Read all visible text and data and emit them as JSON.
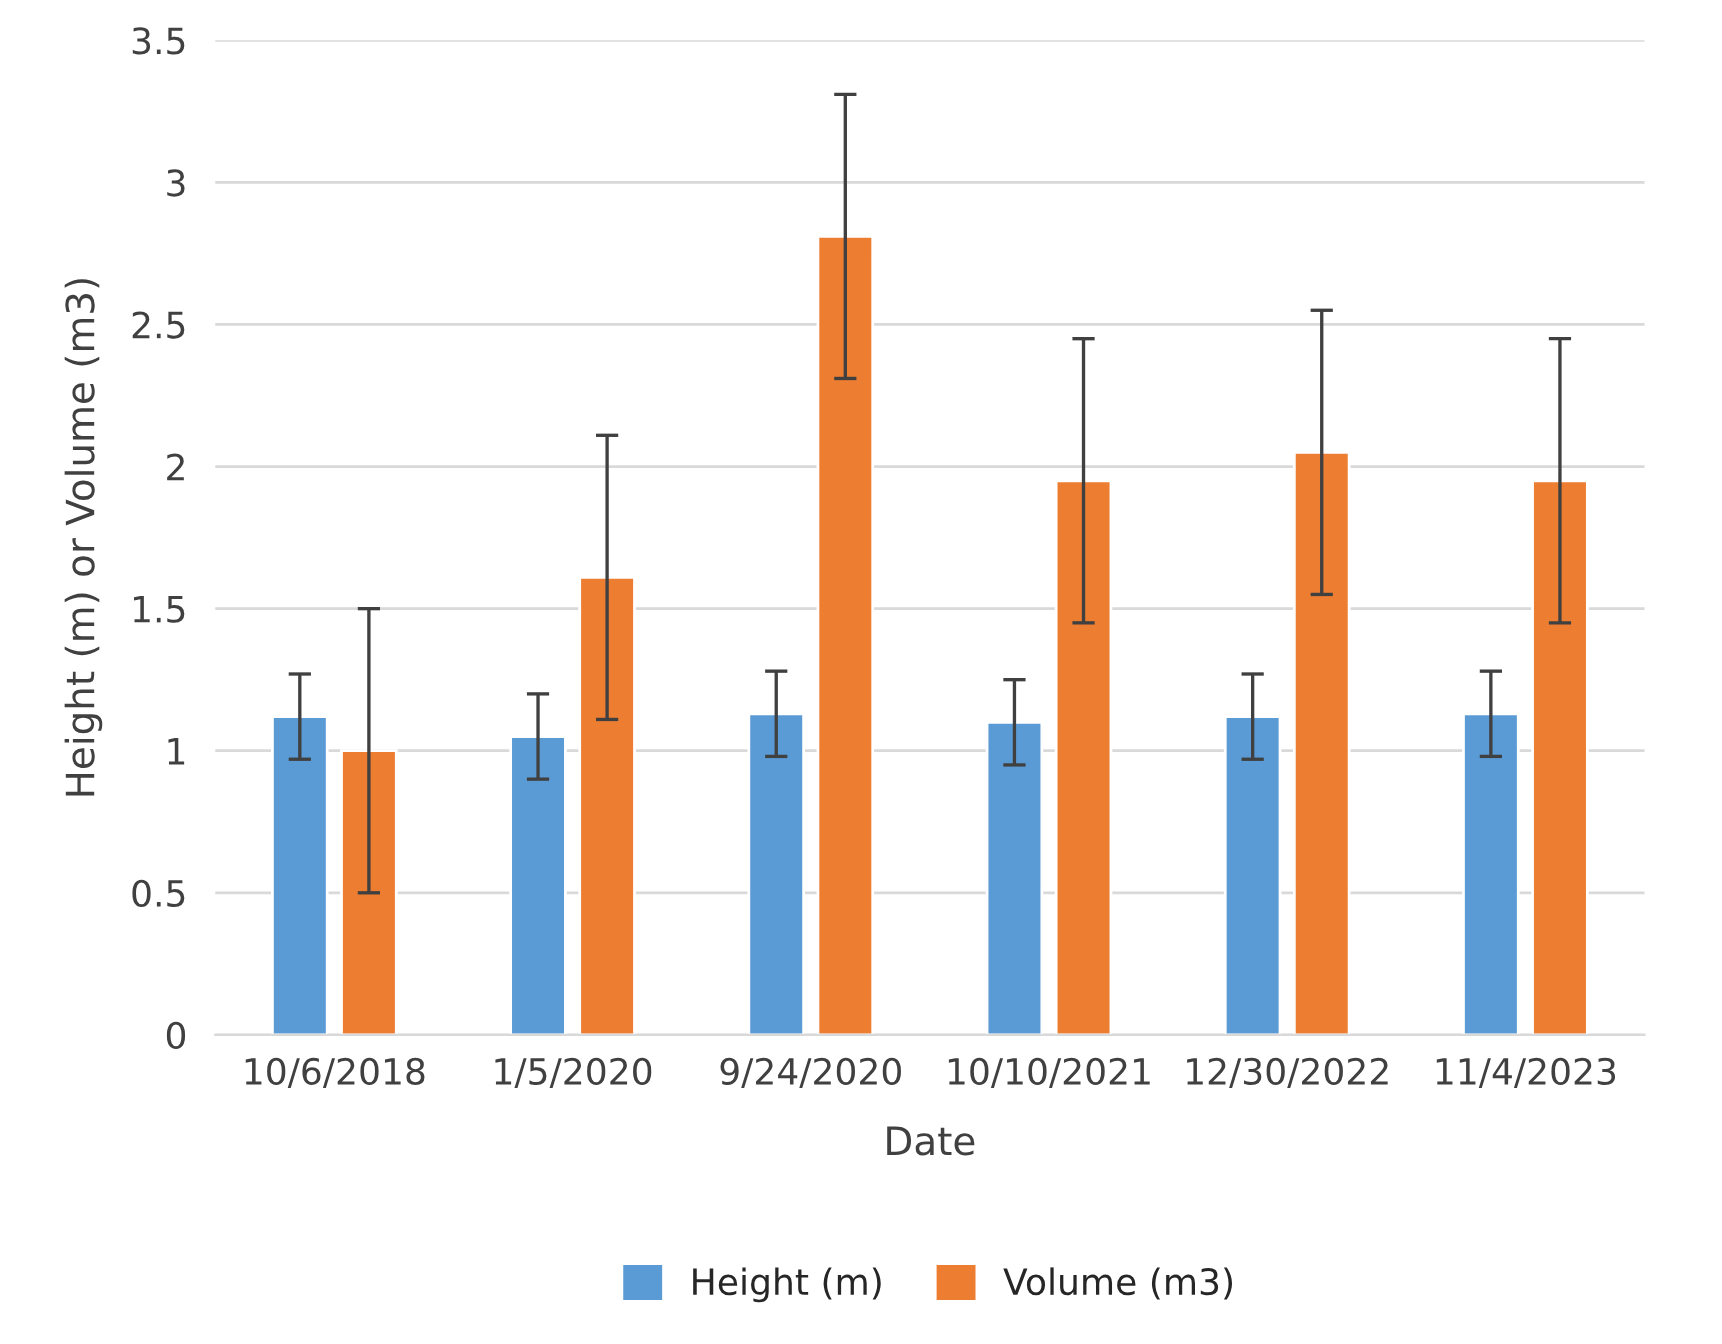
{
  "chart_data": {
    "type": "bar",
    "xlabel": "Date",
    "ylabel": "Height (m) or Volume (m3)",
    "categories": [
      "10/6/2018",
      "1/5/2020",
      "9/24/2020",
      "10/10/2021",
      "12/30/2022",
      "11/4/2023"
    ],
    "series": [
      {
        "name": "Height (m)",
        "color": "#5b9bd5",
        "values": [
          1.12,
          1.05,
          1.13,
          1.1,
          1.12,
          1.13
        ],
        "errors": [
          0.15,
          0.15,
          0.15,
          0.15,
          0.15,
          0.15
        ]
      },
      {
        "name": "Volume (m3)",
        "color": "#ed7d31",
        "values": [
          1.0,
          1.61,
          2.81,
          1.95,
          2.05,
          1.95
        ],
        "errors": [
          0.5,
          0.5,
          0.5,
          0.5,
          0.5,
          0.5
        ]
      }
    ],
    "ylim": [
      0,
      3.5
    ],
    "yticks": [
      0,
      0.5,
      1,
      1.5,
      2,
      2.5,
      3,
      3.5
    ],
    "grid": "y",
    "legend": "bottom"
  }
}
